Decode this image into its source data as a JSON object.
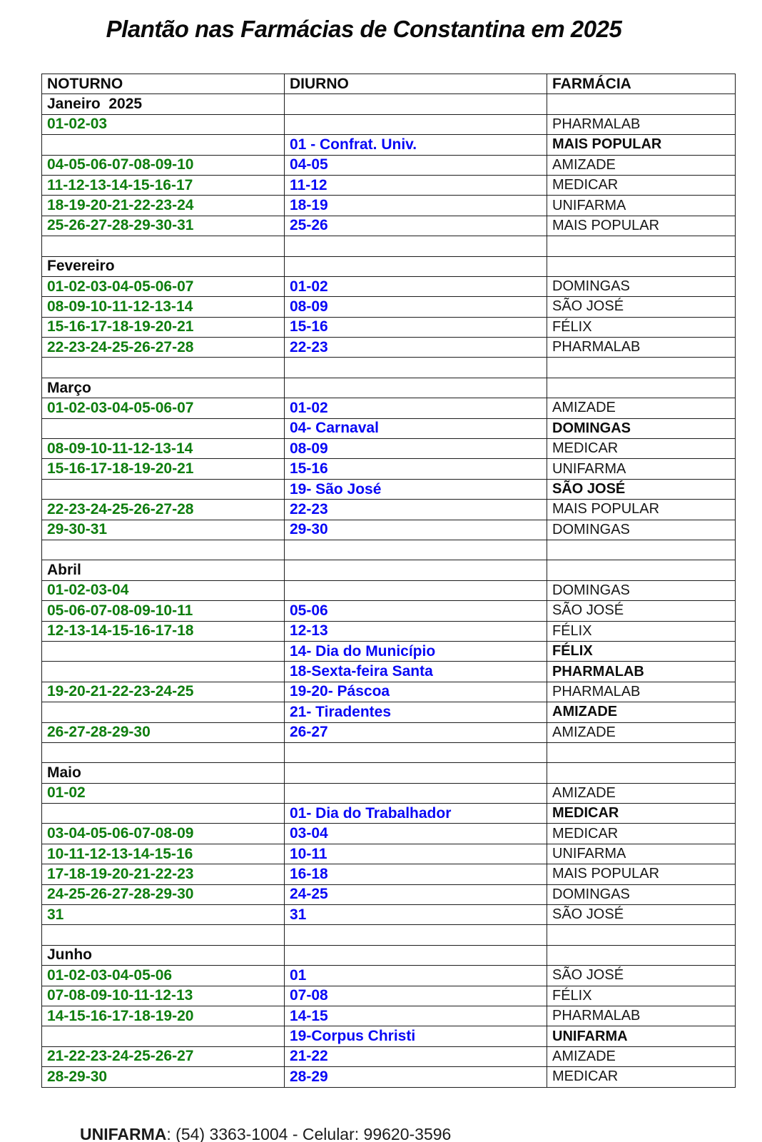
{
  "title": "Plantão nas Farmácias de Constantina em 2025",
  "colors": {
    "night_green": "#0e7d0e",
    "day_blue": "#0808f5",
    "border_black": "#1c1c1c"
  },
  "table": {
    "columns": [
      "NOTURNO",
      "DIURNO",
      "FARMÁCIA"
    ],
    "rows": [
      {
        "type": "month",
        "noturno": "Janeiro  2025"
      },
      {
        "type": "data",
        "noturno": "01-02-03",
        "diurno": "",
        "farmacia": "PHARMALAB",
        "farmacia_bold": false
      },
      {
        "type": "data",
        "noturno": "",
        "diurno": "01 - Confrat. Univ.",
        "farmacia": "MAIS POPULAR",
        "farmacia_bold": true
      },
      {
        "type": "data",
        "noturno": "04-05-06-07-08-09-10",
        "diurno": "04-05",
        "farmacia": "AMIZADE",
        "farmacia_bold": false
      },
      {
        "type": "data",
        "noturno": "11-12-13-14-15-16-17",
        "diurno": "11-12",
        "farmacia": "MEDICAR",
        "farmacia_bold": false
      },
      {
        "type": "data",
        "noturno": "18-19-20-21-22-23-24",
        "diurno": "18-19",
        "farmacia": "UNIFARMA",
        "farmacia_bold": false
      },
      {
        "type": "data",
        "noturno": "25-26-27-28-29-30-31",
        "diurno": "25-26",
        "farmacia": "MAIS POPULAR",
        "farmacia_bold": false
      },
      {
        "type": "spacer"
      },
      {
        "type": "month",
        "noturno": "Fevereiro"
      },
      {
        "type": "data",
        "noturno": "01-02-03-04-05-06-07",
        "diurno": "01-02",
        "farmacia": "DOMINGAS",
        "farmacia_bold": false
      },
      {
        "type": "data",
        "noturno": "08-09-10-11-12-13-14",
        "diurno": "08-09",
        "farmacia": "SÃO JOSÉ",
        "farmacia_bold": false
      },
      {
        "type": "data",
        "noturno": "15-16-17-18-19-20-21",
        "diurno": "15-16",
        "farmacia": "FÉLIX",
        "farmacia_bold": false
      },
      {
        "type": "data",
        "noturno": "22-23-24-25-26-27-28",
        "diurno": "22-23",
        "farmacia": "PHARMALAB",
        "farmacia_bold": false
      },
      {
        "type": "spacer"
      },
      {
        "type": "month",
        "noturno": "Março"
      },
      {
        "type": "data",
        "noturno": "01-02-03-04-05-06-07",
        "diurno": "01-02",
        "farmacia": "AMIZADE",
        "farmacia_bold": false
      },
      {
        "type": "data",
        "noturno": "",
        "diurno": "04- Carnaval",
        "farmacia": "DOMINGAS",
        "farmacia_bold": true
      },
      {
        "type": "data",
        "noturno": "08-09-10-11-12-13-14",
        "diurno": "08-09",
        "farmacia": "MEDICAR",
        "farmacia_bold": false
      },
      {
        "type": "data",
        "noturno": "15-16-17-18-19-20-21",
        "diurno": "15-16",
        "farmacia": "UNIFARMA",
        "farmacia_bold": false
      },
      {
        "type": "data",
        "noturno": "",
        "diurno": "19- São José",
        "farmacia": "SÃO JOSÉ",
        "farmacia_bold": true
      },
      {
        "type": "data",
        "noturno": "22-23-24-25-26-27-28",
        "diurno": "22-23",
        "farmacia": "MAIS POPULAR",
        "farmacia_bold": false
      },
      {
        "type": "data",
        "noturno": "29-30-31",
        "diurno": "29-30",
        "farmacia": "DOMINGAS",
        "farmacia_bold": false
      },
      {
        "type": "spacer"
      },
      {
        "type": "month",
        "noturno": "Abril"
      },
      {
        "type": "data",
        "noturno": "01-02-03-04",
        "diurno": "",
        "farmacia": "DOMINGAS",
        "farmacia_bold": false
      },
      {
        "type": "data",
        "noturno": "05-06-07-08-09-10-11",
        "diurno": "05-06",
        "farmacia": "SÃO JOSÉ",
        "farmacia_bold": false
      },
      {
        "type": "data",
        "noturno": "12-13-14-15-16-17-18",
        "diurno": "12-13",
        "farmacia": "FÉLIX",
        "farmacia_bold": false
      },
      {
        "type": "data",
        "noturno": "",
        "diurno": "14- Dia do Município",
        "farmacia": "FÉLIX",
        "farmacia_bold": true
      },
      {
        "type": "data",
        "noturno": "",
        "diurno": "18-Sexta-feira Santa",
        "farmacia": "PHARMALAB",
        "farmacia_bold": true
      },
      {
        "type": "data",
        "noturno": "19-20-21-22-23-24-25",
        "diurno": "19-20- Páscoa",
        "farmacia": "PHARMALAB",
        "farmacia_bold": false
      },
      {
        "type": "data",
        "noturno": "",
        "diurno": "21- Tiradentes",
        "farmacia": "AMIZADE",
        "farmacia_bold": true
      },
      {
        "type": "data",
        "noturno": "26-27-28-29-30",
        "diurno": "26-27",
        "farmacia": "AMIZADE",
        "farmacia_bold": false
      },
      {
        "type": "spacer"
      },
      {
        "type": "month",
        "noturno": "Maio"
      },
      {
        "type": "data",
        "noturno": "01-02",
        "diurno": "",
        "farmacia": "AMIZADE",
        "farmacia_bold": false
      },
      {
        "type": "data",
        "noturno": "",
        "diurno": "01- Dia do Trabalhador",
        "farmacia": "MEDICAR",
        "farmacia_bold": true
      },
      {
        "type": "data",
        "noturno": "03-04-05-06-07-08-09",
        "diurno": "03-04",
        "farmacia": "MEDICAR",
        "farmacia_bold": false
      },
      {
        "type": "data",
        "noturno": "10-11-12-13-14-15-16",
        "diurno": "10-11",
        "farmacia": "UNIFARMA",
        "farmacia_bold": false
      },
      {
        "type": "data",
        "noturno": "17-18-19-20-21-22-23",
        "diurno": "16-18",
        "farmacia": "MAIS POPULAR",
        "farmacia_bold": false
      },
      {
        "type": "data",
        "noturno": "24-25-26-27-28-29-30",
        "diurno": "24-25",
        "farmacia": "DOMINGAS",
        "farmacia_bold": false
      },
      {
        "type": "data",
        "noturno": "31",
        "diurno": "31",
        "farmacia": "SÃO JOSÉ",
        "farmacia_bold": false
      },
      {
        "type": "spacer"
      },
      {
        "type": "month",
        "noturno": "Junho"
      },
      {
        "type": "data",
        "noturno": "01-02-03-04-05-06",
        "diurno": "01",
        "farmacia": "SÃO JOSÉ",
        "farmacia_bold": false
      },
      {
        "type": "data",
        "noturno": "07-08-09-10-11-12-13",
        "diurno": "07-08",
        "farmacia": "FÉLIX",
        "farmacia_bold": false
      },
      {
        "type": "data",
        "noturno": "14-15-16-17-18-19-20",
        "diurno": "14-15",
        "farmacia": "PHARMALAB",
        "farmacia_bold": false
      },
      {
        "type": "data",
        "noturno": "",
        "diurno": "19-Corpus Christi",
        "farmacia": "UNIFARMA",
        "farmacia_bold": true
      },
      {
        "type": "data",
        "noturno": "21-22-23-24-25-26-27",
        "diurno": "21-22",
        "farmacia": "AMIZADE",
        "farmacia_bold": false
      },
      {
        "type": "data",
        "noturno": "28-29-30",
        "diurno": "28-29",
        "farmacia": "MEDICAR",
        "farmacia_bold": false
      }
    ]
  },
  "footer": {
    "label": "UNIFARMA",
    "rest": ": (54) 3363-1004 - Celular: 99620-3596"
  }
}
